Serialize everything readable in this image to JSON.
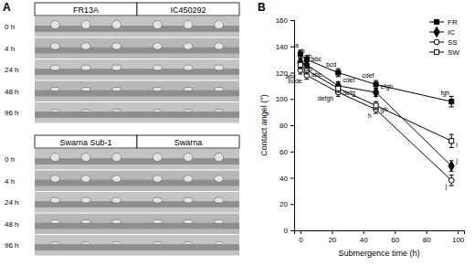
{
  "panel_a": {
    "label": "A",
    "groups": [
      {
        "title": "FR13A"
      },
      {
        "title": "IC450292"
      },
      {
        "title": "Swarna Sub-1"
      },
      {
        "title": "Swarna"
      }
    ],
    "times": [
      "0 h",
      "4 h",
      "24 h",
      "48 h",
      "96 h"
    ]
  },
  "chart_data": {
    "type": "line",
    "panel_label": "B",
    "x_label": "Submergence time (h)",
    "y_label": "Contact angel (°)",
    "x": [
      0,
      4,
      24,
      48,
      96
    ],
    "xlim": [
      -4,
      104
    ],
    "xticks": [
      0,
      20,
      40,
      60,
      80,
      100
    ],
    "ylim": [
      0,
      160
    ],
    "yticks": [
      0,
      20,
      40,
      60,
      80,
      100,
      120,
      140,
      160
    ],
    "legend": "top-right",
    "series": [
      {
        "name": "FR",
        "color": "#000000",
        "marker": "filled-square",
        "values": [
          134,
          130,
          120,
          111,
          98
        ],
        "errors": [
          3,
          3,
          3,
          3,
          4
        ],
        "letters": [
          "a",
          "ab",
          "bcd",
          "cdef",
          "fgh"
        ]
      },
      {
        "name": "IC",
        "color": "#000000",
        "marker": "filled-diamond",
        "values": [
          128,
          126,
          110,
          105,
          49
        ],
        "errors": [
          3,
          3,
          3,
          3,
          4
        ],
        "letters": [
          "ab",
          "abc",
          "cdef",
          "efgh",
          "j"
        ]
      },
      {
        "name": "SS",
        "color": "#000000",
        "marker": "open-circle",
        "values": [
          122,
          118,
          105,
          92,
          38
        ],
        "errors": [
          3,
          3,
          3,
          3,
          4
        ],
        "letters": [
          "abc",
          "bcde",
          "defgh",
          "h",
          "j"
        ]
      },
      {
        "name": "SW",
        "color": "#000000",
        "marker": "open-square",
        "values": [
          126,
          122,
          108,
          95,
          68
        ],
        "errors": [
          3,
          3,
          3,
          3,
          5
        ],
        "letters": [
          "ab",
          "abc",
          "defg",
          "gh",
          "i"
        ]
      }
    ]
  }
}
